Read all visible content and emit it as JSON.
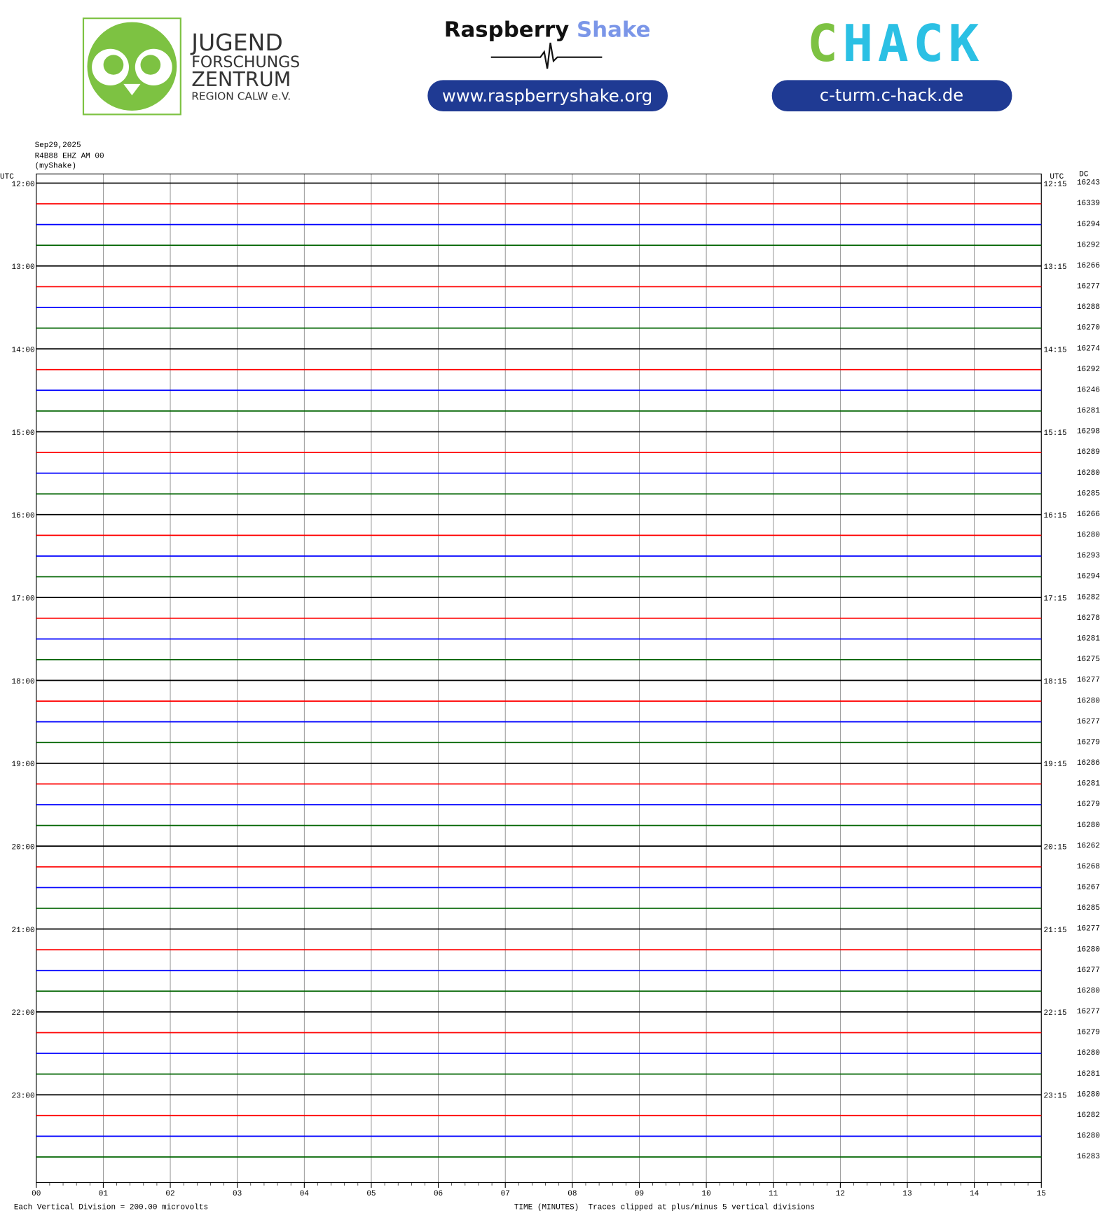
{
  "header": {
    "jfz_lines": [
      "JUGEND",
      "FORSCHUNGS",
      "ZENTRUM",
      "REGION CALW e.V."
    ],
    "rs_brand": [
      "Raspberry",
      "Shake"
    ],
    "rs_url": "www.raspberryshake.org",
    "chack_logo": [
      "C",
      "HACK"
    ],
    "chack_url": "c-turm.c-hack.de"
  },
  "chart_data": {
    "type": "helicorder",
    "date": "Sep29,2025",
    "station": "R4B88 EHZ AM 00",
    "source": "(myShake)",
    "time_zone_label": "UTC",
    "dc_label": "DC",
    "row_labels_left": [
      "12:00",
      "13:00",
      "14:00",
      "15:00",
      "16:00",
      "17:00",
      "18:00",
      "19:00",
      "20:00",
      "21:00",
      "22:00",
      "23:00"
    ],
    "row_labels_right": [
      "12:15",
      "13:15",
      "14:15",
      "15:15",
      "16:15",
      "17:15",
      "18:15",
      "19:15",
      "20:15",
      "21:15",
      "22:15",
      "23:15"
    ],
    "dc_values": [
      16243,
      16339,
      16294,
      16292,
      16266,
      16277,
      16288,
      16270,
      16274,
      16292,
      16246,
      16281,
      16298,
      16289,
      16280,
      16285,
      16266,
      16280,
      16293,
      16294,
      16282,
      16278,
      16281,
      16275,
      16277,
      16280,
      16277,
      16279,
      16286,
      16281,
      16279,
      16280,
      16262,
      16268,
      16267,
      16285,
      16277,
      16280,
      16277,
      16280,
      16277,
      16279,
      16280,
      16281,
      16280,
      16282,
      16280,
      16283
    ],
    "trace_colors": [
      "#000000",
      "#ff0000",
      "#0000ff",
      "#006400"
    ],
    "xlim": [
      0,
      15
    ],
    "xticks": [
      {
        "value": 0,
        "label": "00"
      },
      {
        "value": 1,
        "label": "01"
      },
      {
        "value": 2,
        "label": "02"
      },
      {
        "value": 3,
        "label": "03"
      },
      {
        "value": 4,
        "label": "04"
      },
      {
        "value": 5,
        "label": "05"
      },
      {
        "value": 6,
        "label": "06"
      },
      {
        "value": 7,
        "label": "07"
      },
      {
        "value": 8,
        "label": "08"
      },
      {
        "value": 9,
        "label": "09"
      },
      {
        "value": 10,
        "label": "10"
      },
      {
        "value": 11,
        "label": "11"
      },
      {
        "value": 12,
        "label": "12"
      },
      {
        "value": 13,
        "label": "13"
      },
      {
        "value": 14,
        "label": "14"
      },
      {
        "value": 15,
        "label": "15"
      }
    ],
    "grid": true,
    "xlabel": "TIME (MINUTES)",
    "scale_note": "Each Vertical Division =  200.00 microvolts",
    "clip_note": "Traces clipped at plus/minus 5 vertical divisions"
  }
}
